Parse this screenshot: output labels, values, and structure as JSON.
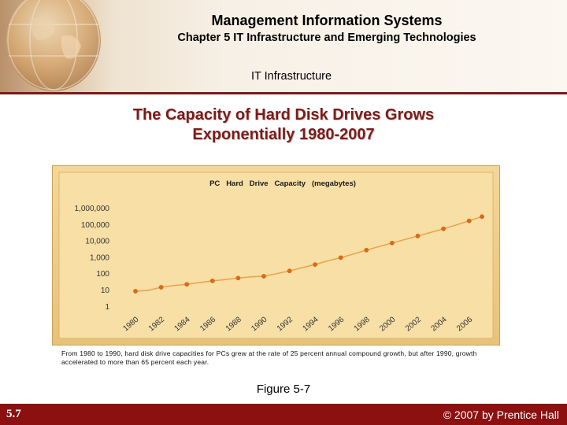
{
  "header": {
    "course": "Management Information Systems",
    "chapter": "Chapter 5 IT Infrastructure and Emerging Technologies",
    "section": "IT Infrastructure"
  },
  "slide": {
    "title_line1": "The Capacity of Hard Disk Drives Grows",
    "title_line2": "Exponentially 1980-2007"
  },
  "caption": "From 1980 to 1990, hard disk drive capacities for PCs grew at the rate of 25 percent annual compound growth, but after 1990, growth accelerated to more than 65 percent each year.",
  "figure_label": "Figure 5-7",
  "footer": {
    "slide_number": "5.7",
    "copyright": "© 2007 by Prentice Hall"
  },
  "colors": {
    "accent": "#7a1b1b",
    "footer": "#8c1010",
    "chart_bg": "#f0cf8c",
    "line": "#e8a24a",
    "marker": "#e06a10"
  },
  "chart_data": {
    "type": "line",
    "title": "PC   Hard   Drive   Capacity   (megabytes)",
    "scale": "log",
    "y_tick_labels": [
      "1,000,000",
      "100,000",
      "10,000",
      "1,000",
      "100",
      "10",
      "1"
    ],
    "y_tick_values": [
      1000000,
      100000,
      10000,
      1000,
      100,
      10,
      1
    ],
    "x_tick_labels": [
      "1980",
      "1982",
      "1984",
      "1986",
      "1988",
      "1990",
      "1992",
      "1994",
      "1996",
      "1998",
      "2000",
      "2002",
      "2004",
      "2006"
    ],
    "series": [
      {
        "x": [
          1980,
          1981,
          1982,
          1983,
          1984,
          1985,
          1986,
          1987,
          1988,
          1989,
          1990,
          1991,
          1992,
          1993,
          1994,
          1995,
          1996,
          1997,
          1998,
          1999,
          2000,
          2001,
          2002,
          2003,
          2004,
          2005,
          2006,
          2007
        ],
        "y": [
          8,
          9,
          14,
          18,
          21,
          27,
          34,
          41,
          51,
          60,
          66,
          95,
          140,
          220,
          340,
          580,
          900,
          1500,
          2600,
          4300,
          7000,
          11500,
          19000,
          31000,
          52000,
          90000,
          160000,
          290000
        ]
      }
    ],
    "grid": false,
    "legend": "none"
  }
}
